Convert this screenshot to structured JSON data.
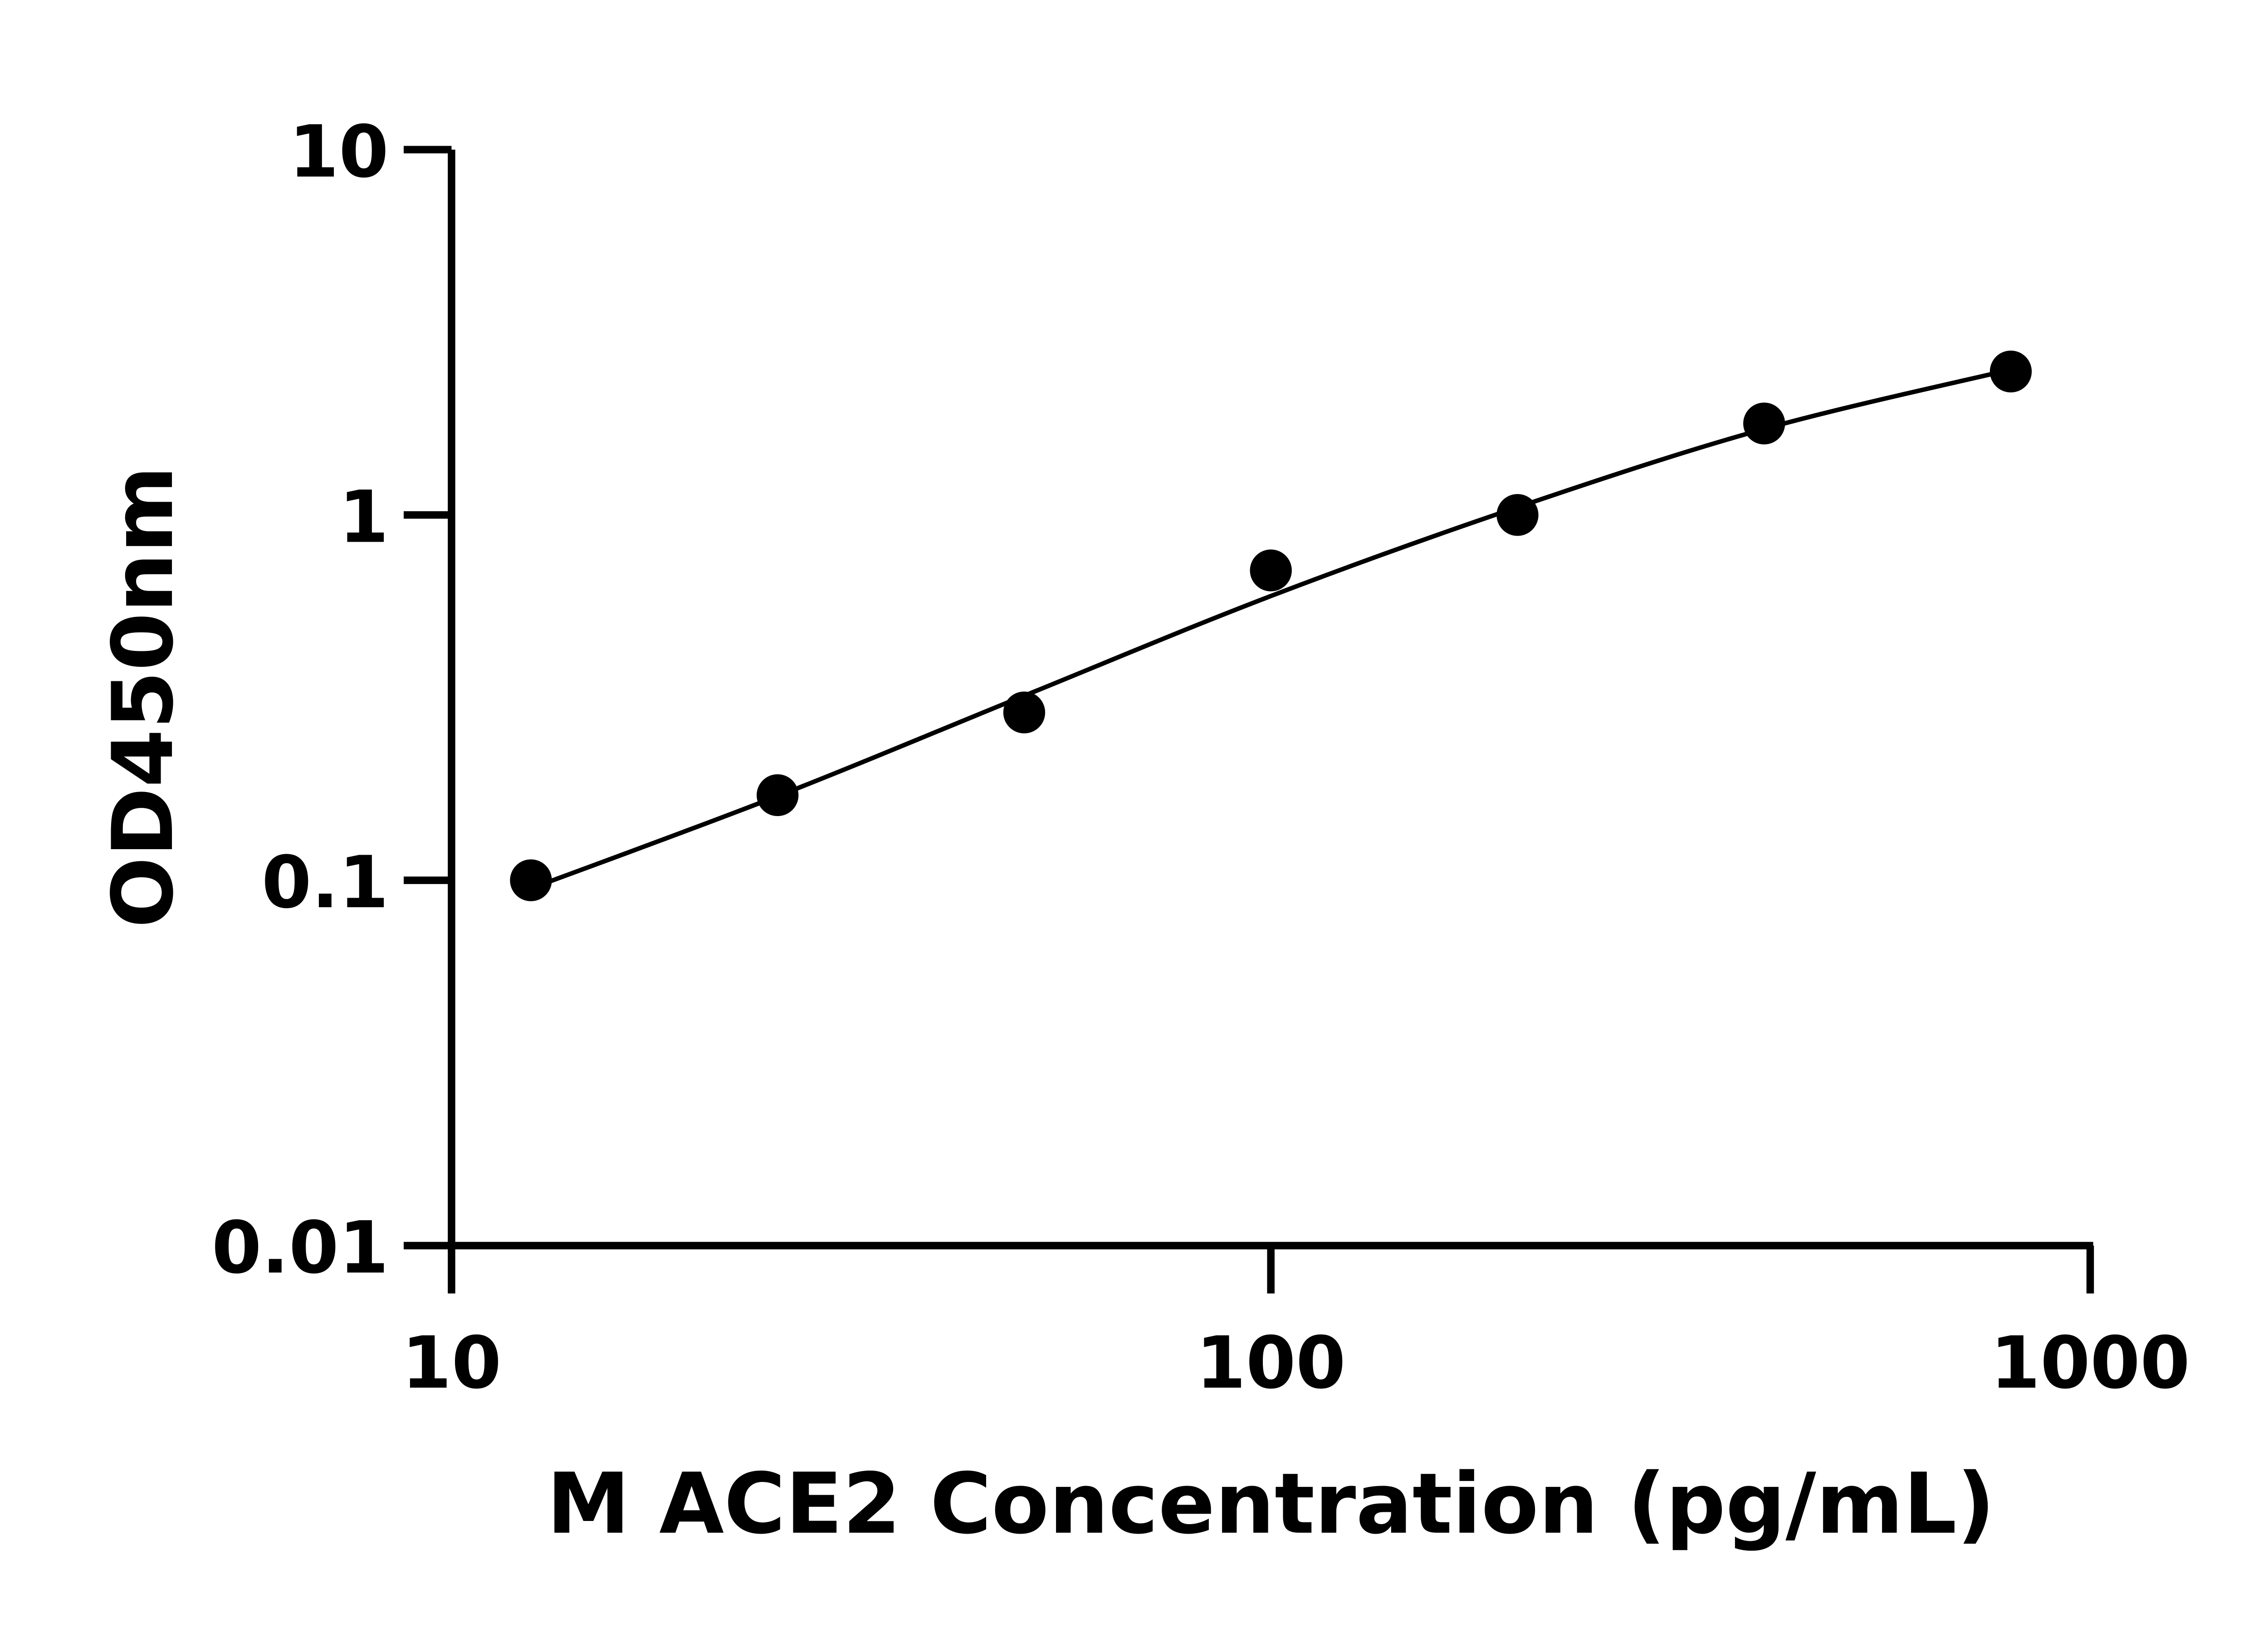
{
  "chart_data": {
    "type": "scatter",
    "title": "",
    "xlabel": "M ACE2 Concentration (pg/mL)",
    "ylabel": "OD450nm",
    "x_scale": "log",
    "y_scale": "log",
    "xlim": [
      10,
      1000
    ],
    "ylim": [
      0.01,
      10
    ],
    "x_ticks": [
      "10",
      "100",
      "1000"
    ],
    "y_ticks": [
      "0.01",
      "0.1",
      "1",
      "10"
    ],
    "grid": false,
    "legend": "none",
    "series": [
      {
        "x": [
          12.5,
          25,
          50,
          100,
          200,
          400,
          800
        ],
        "y": [
          0.1,
          0.171,
          0.288,
          0.705,
          1.0,
          1.78,
          2.47
        ],
        "marker": "filled-circle",
        "color": "#000000"
      }
    ],
    "fit_curve": {
      "x": [
        12.5,
        25,
        50,
        100,
        200,
        400,
        800
      ],
      "y": [
        0.095,
        0.17,
        0.32,
        0.6,
        1.05,
        1.72,
        2.5
      ],
      "color": "#000000"
    }
  }
}
